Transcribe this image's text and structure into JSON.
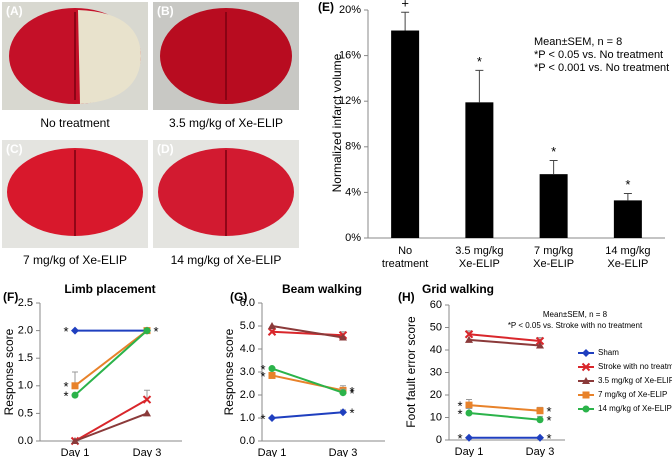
{
  "panels": [
    {
      "label": "(A)",
      "caption": "No treatment"
    },
    {
      "label": "(B)",
      "caption": "3.5 mg/kg of Xe-ELIP"
    },
    {
      "label": "(C)",
      "caption": "7 mg/kg of Xe-ELIP"
    },
    {
      "label": "(D)",
      "caption": "14 mg/kg of Xe-ELIP"
    }
  ],
  "chart_data": [
    {
      "type": "bar",
      "label": "(E)",
      "ylabel": "Normalized infarct volume",
      "categories": [
        [
          "No",
          "treatment"
        ],
        [
          "3.5 mg/kg",
          "Xe-ELIP"
        ],
        [
          "7 mg/kg",
          "Xe-ELIP"
        ],
        [
          "14 mg/kg",
          "Xe-ELIP"
        ]
      ],
      "values": [
        18.2,
        11.9,
        5.6,
        3.3
      ],
      "errors": [
        1.6,
        2.8,
        1.2,
        0.6
      ],
      "markers": [
        "+",
        "*",
        "*",
        "*"
      ],
      "color": "#000000",
      "ylim": [
        0,
        20
      ],
      "yticks": [
        {
          "value": 0,
          "label": "0%"
        },
        {
          "value": 4,
          "label": "4%"
        },
        {
          "value": 8,
          "label": "8%"
        },
        {
          "value": 12,
          "label": "12%"
        },
        {
          "value": 16,
          "label": "16%"
        },
        {
          "value": 20,
          "label": "20%"
        }
      ],
      "notes": [
        "Mean±SEM, n = 8",
        "*P < 0.05 vs. No treatment",
        "*P < 0.001 vs. No treatment"
      ]
    },
    {
      "type": "line",
      "label": "(F)",
      "title": "Limb placement",
      "ylabel": "Response score",
      "categories": [
        "Day 1",
        "Day 3"
      ],
      "ylim": [
        0,
        2.5
      ],
      "yticks": [
        {
          "value": 0,
          "label": "0.0"
        },
        {
          "value": 0.5,
          "label": "0.5"
        },
        {
          "value": 1,
          "label": "1.0"
        },
        {
          "value": 1.5,
          "label": "1.5"
        },
        {
          "value": 2,
          "label": "2.0"
        },
        {
          "value": 2.5,
          "label": "2.5"
        }
      ],
      "series": [
        {
          "color": "#1f3fbf",
          "marker": "diamond",
          "values": [
            2,
            2
          ],
          "errors": [
            null,
            null
          ],
          "markers": [
            "*",
            "*"
          ]
        },
        {
          "color": "#d9262b",
          "marker": "x",
          "values": [
            0,
            0.75
          ],
          "errors": [
            null,
            0.17
          ],
          "markers": [
            null,
            null
          ]
        },
        {
          "color": "#8b3a3a",
          "marker": "triangle",
          "values": [
            0,
            0.5
          ],
          "errors": [
            null,
            null
          ],
          "markers": [
            null,
            null
          ]
        },
        {
          "color": "#e8822a",
          "marker": "square",
          "values": [
            1,
            2
          ],
          "errors": [
            0.25,
            null
          ],
          "markers": [
            "*",
            null
          ]
        },
        {
          "color": "#2bb34a",
          "marker": "circle",
          "values": [
            0.83,
            2
          ],
          "errors": [
            null,
            null
          ],
          "markers": [
            "*",
            null
          ]
        }
      ]
    },
    {
      "type": "line",
      "label": "(G)",
      "title": "Beam walking",
      "ylabel": "Response score",
      "categories": [
        "Day 1",
        "Day 3"
      ],
      "ylim": [
        0,
        6
      ],
      "yticks": [
        {
          "value": 0,
          "label": "0.0"
        },
        {
          "value": 1,
          "label": "1.0"
        },
        {
          "value": 2,
          "label": "2.0"
        },
        {
          "value": 3,
          "label": "3.0"
        },
        {
          "value": 4,
          "label": "4.0"
        },
        {
          "value": 5,
          "label": "5.0"
        },
        {
          "value": 6,
          "label": "6.0"
        }
      ],
      "series": [
        {
          "color": "#1f3fbf",
          "marker": "diamond",
          "values": [
            1,
            1.25
          ],
          "errors": [
            null,
            0.1
          ],
          "markers": [
            "*",
            "*"
          ]
        },
        {
          "color": "#d9262b",
          "marker": "x",
          "values": [
            4.75,
            4.6
          ],
          "errors": [
            0.2,
            0.15
          ],
          "markers": [
            null,
            null
          ]
        },
        {
          "color": "#8b3a3a",
          "marker": "triangle",
          "values": [
            5,
            4.5
          ],
          "errors": [
            null,
            null
          ],
          "markers": [
            null,
            null
          ]
        },
        {
          "color": "#e8822a",
          "marker": "square",
          "values": [
            2.85,
            2.2
          ],
          "errors": [
            0.3,
            0.2
          ],
          "markers": [
            "*",
            "*"
          ]
        },
        {
          "color": "#2bb34a",
          "marker": "circle",
          "values": [
            3.15,
            2.1
          ],
          "errors": [
            null,
            0.15
          ],
          "markers": [
            "*",
            "*"
          ]
        }
      ]
    },
    {
      "type": "line",
      "label": "(H)",
      "title": "Grid walking",
      "ylabel": "Foot fault error score",
      "categories": [
        "Day 1",
        "Day 3"
      ],
      "ylim": [
        0,
        60
      ],
      "yticks": [
        0,
        10,
        20,
        30,
        40,
        50,
        60
      ],
      "legend": true,
      "notes": [
        "Mean±SEM, n = 8",
        "*P < 0.05 vs. Stroke with no treatment"
      ],
      "series": [
        {
          "name": "Sham",
          "color": "#1f3fbf",
          "marker": "diamond",
          "values": [
            1,
            1
          ],
          "errors": [
            null,
            null
          ],
          "markers": [
            "*",
            "*"
          ]
        },
        {
          "name": "Stroke with no treatment",
          "color": "#d9262b",
          "marker": "x",
          "values": [
            47,
            44
          ],
          "errors": [
            1.5,
            1.5
          ],
          "markers": [
            null,
            null
          ]
        },
        {
          "name": "3.5 mg/kg of Xe-ELIP",
          "color": "#8b3a3a",
          "marker": "triangle",
          "values": [
            44.5,
            42
          ],
          "errors": [
            null,
            null
          ],
          "markers": [
            null,
            null
          ]
        },
        {
          "name": "7 mg/kg of Xe-ELIP",
          "color": "#e8822a",
          "marker": "square",
          "values": [
            15.5,
            13
          ],
          "errors": [
            2.5,
            1.5
          ],
          "markers": [
            "*",
            "*"
          ]
        },
        {
          "name": "14 mg/kg of Xe-ELIP",
          "color": "#2bb34a",
          "marker": "circle",
          "values": [
            12,
            9
          ],
          "errors": [
            2,
            1.5
          ],
          "markers": [
            "*",
            "*"
          ]
        }
      ]
    }
  ]
}
